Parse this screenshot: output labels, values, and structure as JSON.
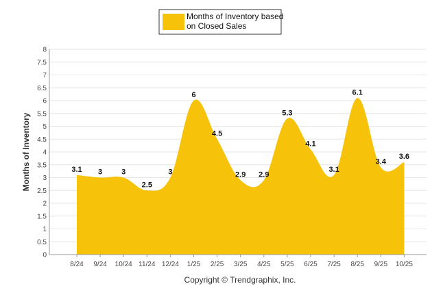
{
  "chart_data": {
    "type": "area",
    "categories": [
      "8/24",
      "9/24",
      "10/24",
      "11/24",
      "12/24",
      "1/25",
      "2/25",
      "3/25",
      "4/25",
      "5/25",
      "6/25",
      "7/25",
      "8/25",
      "9/25",
      "10/25"
    ],
    "series": [
      {
        "name": "Months of Inventory based on Closed Sales",
        "name_lines": [
          "Months of Inventory based",
          "on Closed Sales"
        ],
        "values": [
          3.1,
          3,
          3,
          2.5,
          3,
          6,
          4.5,
          2.9,
          2.9,
          5.3,
          4.1,
          3.1,
          6.1,
          3.4,
          3.6
        ],
        "labels": [
          "3.1",
          "3",
          "3",
          "2.5",
          "3",
          "6",
          "4.5",
          "2.9",
          "2.9",
          "5.3",
          "4.1",
          "3.1",
          "6.1",
          "3.4",
          "3.6"
        ],
        "color": "#F7C20A"
      }
    ],
    "ylabel": "Months of Inventory",
    "xlabel": "",
    "ylim": [
      0,
      8
    ],
    "yticks": [
      0,
      0.5,
      1,
      1.5,
      2,
      2.5,
      3,
      3.5,
      4,
      4.5,
      5,
      5.5,
      6,
      6.5,
      7,
      7.5,
      8
    ],
    "ytick_labels": [
      "0",
      "0.5",
      "1",
      "1.5",
      "2",
      "2.5",
      "3",
      "3.5",
      "4",
      "4.5",
      "5",
      "5.5",
      "6",
      "6.5",
      "7",
      "7.5",
      "8"
    ],
    "grid": true,
    "legend_position": "top-center",
    "grid_color": "#E6E6E6",
    "axis_color": "#999999"
  },
  "footer": {
    "copyright": "Copyright © Trendgraphix, Inc."
  }
}
